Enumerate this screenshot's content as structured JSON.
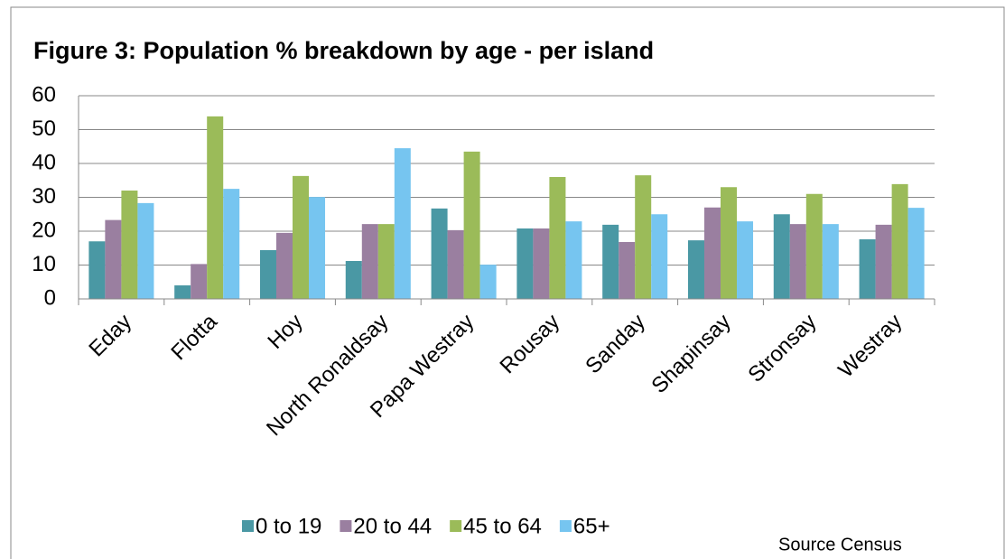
{
  "chart_data": {
    "type": "bar",
    "title": "Figure 3: Population % breakdown by age - per island",
    "categories": [
      "Eday",
      "Flotta",
      "Hoy",
      "North Ronaldsay",
      "Papa Westray",
      "Rousay",
      "Sanday",
      "Shapinsay",
      "Stronsay",
      "Westray"
    ],
    "series": [
      {
        "name": "0 to 19",
        "color": "#4a98a4",
        "values": [
          17,
          4,
          14.4,
          11.2,
          26.7,
          20.8,
          21.9,
          17.3,
          25,
          17.6
        ]
      },
      {
        "name": "20 to 44",
        "color": "#9a7fa0",
        "values": [
          23.3,
          10.3,
          19.5,
          22.1,
          20.3,
          20.8,
          16.8,
          27,
          22.1,
          21.9
        ]
      },
      {
        "name": "45 to 64",
        "color": "#9bbb59",
        "values": [
          32,
          53.9,
          36.3,
          22.1,
          43.5,
          36,
          36.5,
          33,
          31,
          33.9
        ]
      },
      {
        "name": "65+",
        "color": "#76c5f0",
        "values": [
          28.3,
          32.5,
          30.1,
          44.5,
          10.1,
          22.9,
          25,
          22.9,
          22.1,
          26.9
        ]
      }
    ],
    "ylim": [
      0,
      60
    ],
    "yticks": [
      0,
      10,
      20,
      30,
      40,
      50,
      60
    ],
    "grid": true,
    "legend": "bottom",
    "source": "Source Census"
  }
}
